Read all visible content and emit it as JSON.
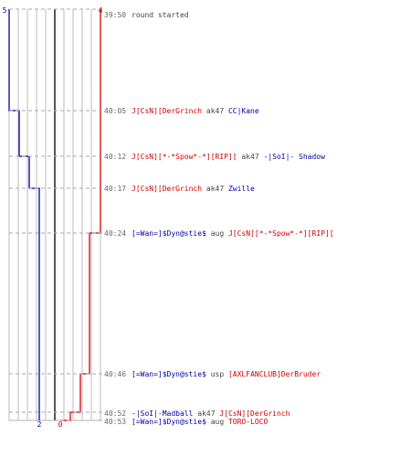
{
  "chart_data": {
    "type": "line",
    "title": "",
    "xlabel": "",
    "ylabel": "",
    "ylim": [
      0,
      5
    ],
    "x_ticks": [
      "39:50",
      "40:05",
      "40:12",
      "40:17",
      "40:24",
      "40:46",
      "40:52",
      "40:53"
    ],
    "axis_labels": {
      "left_top": "5",
      "right_top": "4",
      "bottom_blue": "2",
      "bottom_red": "0"
    },
    "colors": {
      "team_blue": "#0000aa",
      "team_red": "#cc0000",
      "grid": "#bbbbbb",
      "divider": "#555555"
    },
    "series": [
      {
        "color": "#0000aa",
        "points": [
          [
            "39:50",
            5
          ],
          [
            "40:05",
            4
          ],
          [
            "40:12",
            3
          ],
          [
            "40:17",
            2
          ],
          [
            "40:53",
            2
          ]
        ]
      },
      {
        "color": "#cc0000",
        "points": [
          [
            "39:50",
            4
          ],
          [
            "40:24",
            3
          ],
          [
            "40:46",
            2
          ],
          [
            "40:52",
            1
          ],
          [
            "40:53",
            0
          ]
        ]
      }
    ],
    "events": [
      {
        "time": "39:50",
        "parts": [
          {
            "text": "round started",
            "color": "plain"
          }
        ]
      },
      {
        "time": "40:05",
        "parts": [
          {
            "text": "J[CsN][DerGrinch",
            "color": "red"
          },
          {
            "text": " ak47 ",
            "color": "plain"
          },
          {
            "text": "CC|Kane",
            "color": "blue"
          }
        ]
      },
      {
        "time": "40:12",
        "parts": [
          {
            "text": "J[CsN][*-*Spow*-*][RIP][",
            "color": "red"
          },
          {
            "text": " ak47 ",
            "color": "plain"
          },
          {
            "text": "-|SoI|- Shadow",
            "color": "blue"
          }
        ]
      },
      {
        "time": "40:17",
        "parts": [
          {
            "text": "J[CsN][DerGrinch",
            "color": "red"
          },
          {
            "text": " ak47 ",
            "color": "plain"
          },
          {
            "text": "Zwille",
            "color": "blue"
          }
        ]
      },
      {
        "time": "40:24",
        "parts": [
          {
            "text": "[=Wan=]$Dyn@stie$",
            "color": "blue"
          },
          {
            "text": " aug ",
            "color": "plain"
          },
          {
            "text": "J[CsN][*-*Spow*-*][RIP][",
            "color": "red"
          }
        ]
      },
      {
        "time": "40:46",
        "parts": [
          {
            "text": "[=Wan=]$Dyn@stie$",
            "color": "blue"
          },
          {
            "text": " usp ",
            "color": "plain"
          },
          {
            "text": "[AXLFANCLUB]DerBruder",
            "color": "red"
          }
        ]
      },
      {
        "time": "40:52",
        "parts": [
          {
            "text": "-|SoI|-Madball",
            "color": "blue"
          },
          {
            "text": " ak47 ",
            "color": "plain"
          },
          {
            "text": "J[CsN][DerGrinch",
            "color": "red"
          }
        ]
      },
      {
        "time": "40:53",
        "parts": [
          {
            "text": "[=Wan=]$Dyn@stie$",
            "color": "blue"
          },
          {
            "text": " aug ",
            "color": "plain"
          },
          {
            "text": "TORO-LOCO",
            "color": "red"
          }
        ]
      }
    ]
  }
}
